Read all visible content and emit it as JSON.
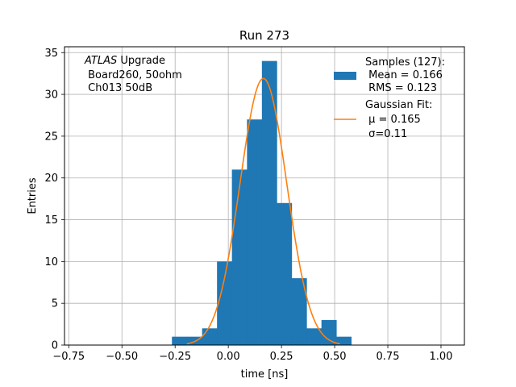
{
  "chart_data": {
    "type": "bar",
    "title": "Run 273",
    "xlabel": "time [ns]",
    "ylabel": "Entries",
    "xlim": [
      -0.77,
      1.11
    ],
    "ylim": [
      0,
      35.7
    ],
    "grid": true,
    "xticks": [
      -0.75,
      -0.5,
      -0.25,
      0.0,
      0.25,
      0.5,
      0.75,
      1.0
    ],
    "xtick_labels": [
      "−0.75",
      "−0.50",
      "−0.25",
      "0.00",
      "0.25",
      "0.50",
      "0.75",
      "1.00"
    ],
    "yticks": [
      0,
      5,
      10,
      15,
      20,
      25,
      30,
      35
    ],
    "ytick_labels": [
      "0",
      "5",
      "10",
      "15",
      "20",
      "25",
      "30",
      "35"
    ],
    "bin_edges": [
      -0.265,
      -0.193,
      -0.123,
      -0.053,
      0.017,
      0.088,
      0.158,
      0.228,
      0.298,
      0.368,
      0.438,
      0.508,
      0.578
    ],
    "hist_values": [
      1,
      1,
      2,
      10,
      21,
      27,
      34,
      17,
      8,
      2,
      3,
      1
    ],
    "series": [
      {
        "name": "Samples (127):",
        "stats": [
          " Mean = 0.166",
          " RMS = 0.123"
        ],
        "color": "#1f77b4",
        "kind": "histogram"
      },
      {
        "name": "Gaussian Fit:",
        "stats": [
          " μ = 0.165",
          " σ=0.11"
        ],
        "color": "#ff7f0e",
        "kind": "line",
        "amplitude": 31.9,
        "mu": 0.165,
        "sigma": 0.11,
        "x_range": [
          -0.195,
          0.525
        ]
      }
    ],
    "annotation": {
      "italic": "ATLAS",
      "line1_rest": " Upgrade",
      "line2": " Board260, 50ohm",
      "line3": " Ch013 50dB"
    },
    "legend_position": "top-right"
  }
}
